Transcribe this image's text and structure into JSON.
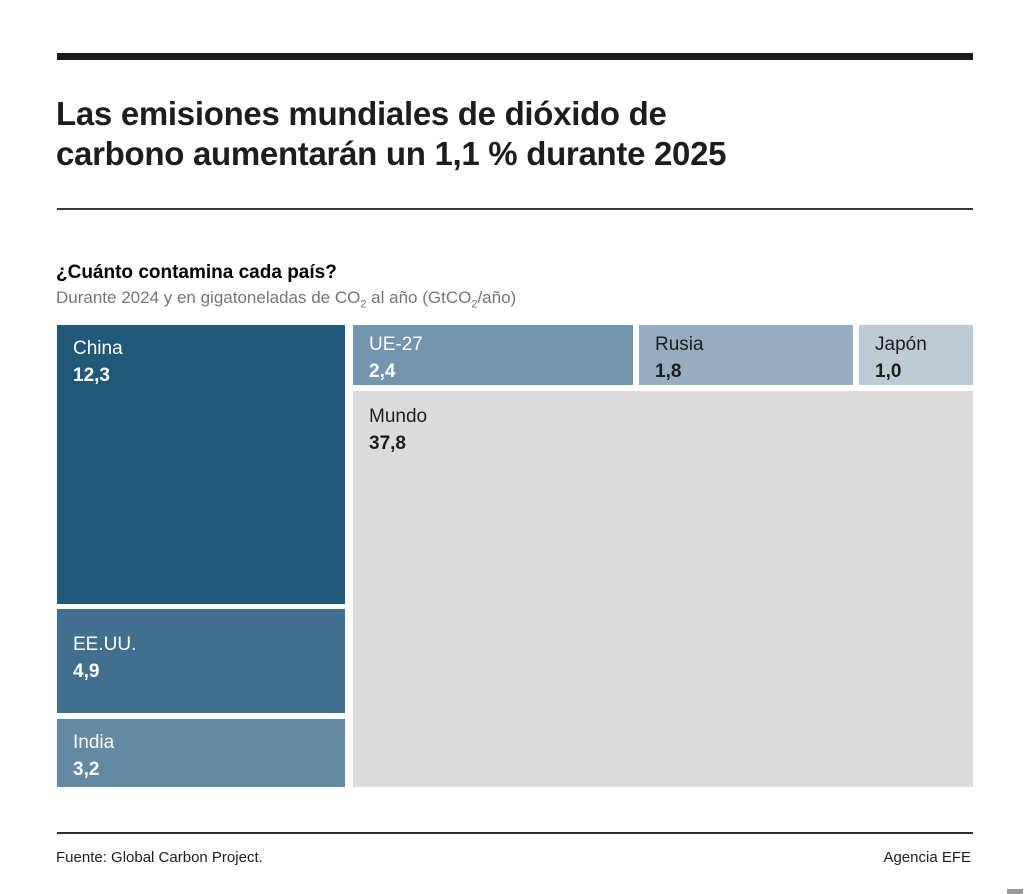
{
  "header": {
    "title_line1": "Las emisiones mundiales de dióxido de",
    "title_line2": "carbono aumentarán un 1,1 % durante 2025"
  },
  "section": {
    "heading": "¿Cuánto contamina cada país?",
    "subtitle": {
      "prefix": "Durante 2024 y en gigatoneladas de CO",
      "sub1": "2",
      "mid": " al año (GtCO",
      "sub2": "2",
      "suffix": "/año)"
    }
  },
  "treemap": {
    "boxes": [
      {
        "id": "china",
        "label": "China",
        "value": "12,3"
      },
      {
        "id": "eeuu",
        "label": "EE.UU.",
        "value": "4,9"
      },
      {
        "id": "india",
        "label": "India",
        "value": "3,2"
      },
      {
        "id": "ue27",
        "label": "UE-27",
        "value": "2,4"
      },
      {
        "id": "rusia",
        "label": "Rusia",
        "value": "1,8"
      },
      {
        "id": "japon",
        "label": "Japón",
        "value": "1,0"
      },
      {
        "id": "mundo",
        "label": "Mundo",
        "value": "37,8"
      }
    ]
  },
  "colors": {
    "china": "#215878",
    "eeuu": "#41708f",
    "india": "#6489a3",
    "ue27": "#7295ad",
    "rusia": "#97adc1",
    "japon": "#bccbd6",
    "mundo": "#dcdcdc",
    "light_text": "#ffffff",
    "dark_text": "#1d1d1b",
    "rule": "#1a1a1a"
  },
  "footer": {
    "source": "Fuente: Global Carbon Project.",
    "credit": "Agencia EFE"
  },
  "chart_data": {
    "type": "treemap",
    "title": "¿Cuánto contamina cada país?",
    "subtitle": "Durante 2024 y en gigatoneladas de CO2 al año (GtCO2/año)",
    "unit": "GtCO2/año",
    "period": "2024",
    "items": [
      {
        "label": "China",
        "value": 12.3
      },
      {
        "label": "EE.UU.",
        "value": 4.9
      },
      {
        "label": "India",
        "value": 3.2
      },
      {
        "label": "UE-27",
        "value": 2.4
      },
      {
        "label": "Rusia",
        "value": 1.8
      },
      {
        "label": "Japón",
        "value": 1.0
      },
      {
        "label": "Mundo",
        "value": 37.8
      }
    ]
  }
}
